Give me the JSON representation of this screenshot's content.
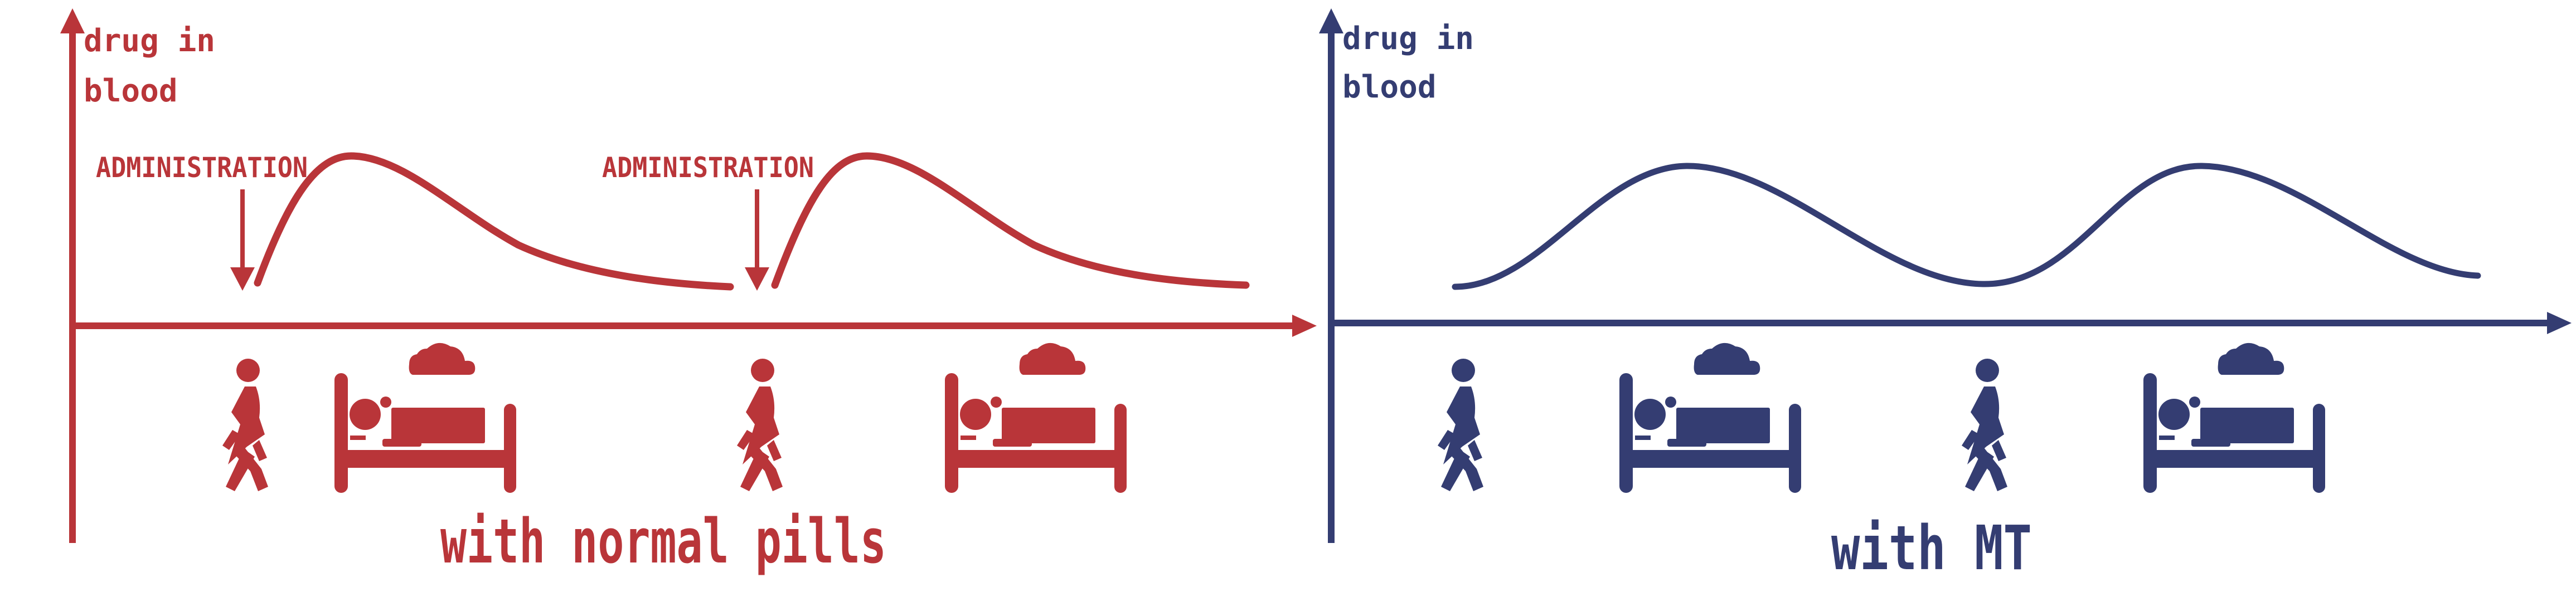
{
  "colors": {
    "left": "#b93539",
    "right": "#343d72"
  },
  "left_panel": {
    "y_axis_label_line1": "drug in",
    "y_axis_label_line2": "blood",
    "administration_1": "ADMINISTRATION",
    "administration_2": "ADMINISTRATION",
    "caption": "with normal pills",
    "icons": [
      "walking-person-icon",
      "sleeping-in-bed-icon",
      "walking-person-icon",
      "sleeping-in-bed-icon"
    ]
  },
  "right_panel": {
    "y_axis_label_line1": "drug in",
    "y_axis_label_line2": "blood",
    "caption": "with MT",
    "icons": [
      "walking-person-icon",
      "sleeping-in-bed-icon",
      "walking-person-icon",
      "sleeping-in-bed-icon"
    ]
  }
}
